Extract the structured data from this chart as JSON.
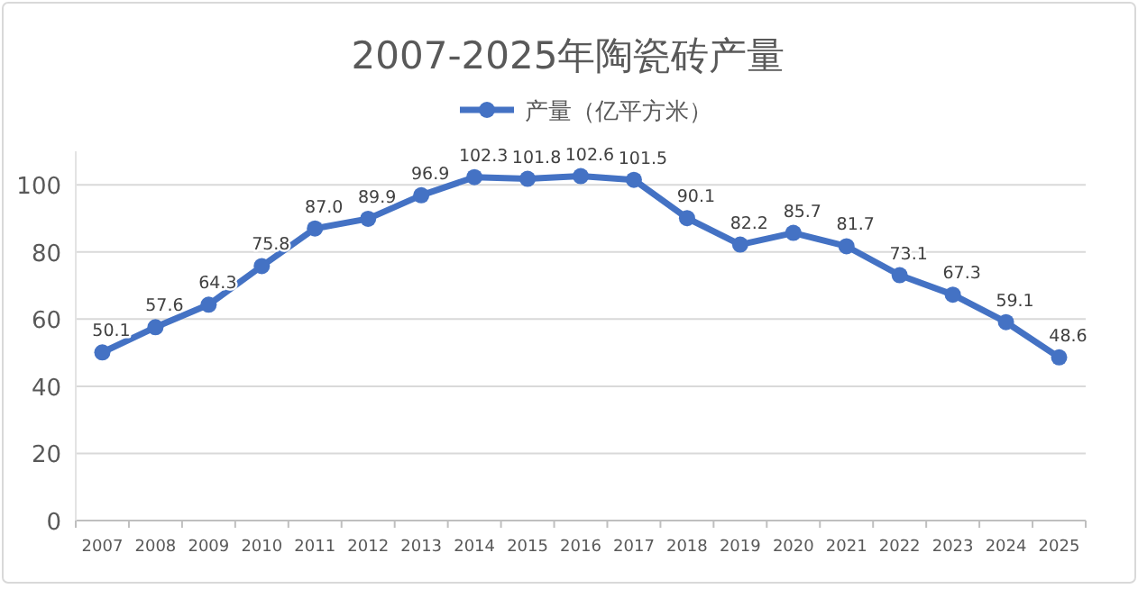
{
  "chart_data": {
    "type": "line",
    "title": "2007-2025年陶瓷砖产量",
    "categories": [
      "2007",
      "2008",
      "2009",
      "2010",
      "2011",
      "2012",
      "2013",
      "2014",
      "2015",
      "2016",
      "2017",
      "2018",
      "2019",
      "2020",
      "2021",
      "2022",
      "2023",
      "2024",
      "2025"
    ],
    "series": [
      {
        "name": "产量（亿平方米）",
        "color": "#4472c4",
        "values": [
          50.1,
          57.6,
          64.3,
          75.8,
          87.0,
          89.9,
          96.9,
          102.3,
          101.8,
          102.6,
          101.5,
          90.1,
          82.2,
          85.7,
          81.7,
          73.1,
          67.3,
          59.1,
          48.6
        ],
        "value_labels": [
          "50.1",
          "57.6",
          "64.3",
          "75.8",
          "87.0",
          "89.9",
          "96.9",
          "102.3",
          "101.8",
          "102.6",
          "101.5",
          "90.1",
          "82.2",
          "85.7",
          "81.7",
          "73.1",
          "67.3",
          "59.1",
          "48.6"
        ]
      }
    ],
    "ylim": [
      0,
      110
    ],
    "yticks": [
      0,
      20,
      40,
      60,
      80,
      100
    ],
    "grid": "y",
    "legend": "top",
    "marker": "circle",
    "line_style": "solid"
  }
}
